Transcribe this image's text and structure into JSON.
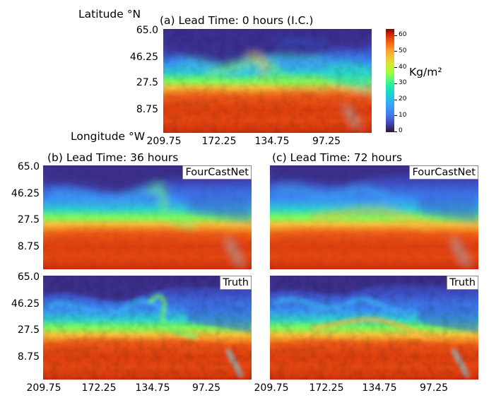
{
  "panel_a": {
    "title": "(a) Lead Time: 0 hours (I.C.)",
    "lat_label": "Latitude °N",
    "lon_label": "Longitude °W",
    "y_ticks": [
      "65.0",
      "46.25",
      "27.5",
      "8.75"
    ],
    "x_ticks": [
      "209.75",
      "172.25",
      "134.75",
      "97.25"
    ]
  },
  "colorbar": {
    "unit": "Kg/m²",
    "ticks": [
      "60",
      "50",
      "40",
      "30",
      "20",
      "10",
      "0"
    ],
    "colormap": [
      "#30123b",
      "#4145ab",
      "#4675ed",
      "#39a2fc",
      "#1bcfd4",
      "#24eca6",
      "#61fc6c",
      "#a4fc3b",
      "#d1e834",
      "#f3c63a",
      "#fe9b2d",
      "#f36315",
      "#d93806",
      "#7a0403"
    ]
  },
  "panel_b": {
    "title": "(b) Lead Time: 36 hours",
    "y_ticks": [
      "65.0",
      "46.25",
      "27.5",
      "8.75"
    ],
    "lower_y_ticks": [
      "65.0",
      "46.25",
      "27.5",
      "8.75"
    ],
    "x_ticks": [
      "209.75",
      "172.25",
      "134.75",
      "97.25"
    ],
    "forecast_label": "FourCastNet",
    "truth_label": "Truth"
  },
  "panel_c": {
    "title": "(c) Lead Time: 72 hours",
    "x_ticks": [
      "209.75",
      "172.25",
      "134.75",
      "97.25"
    ],
    "forecast_label": "FourCastNet",
    "truth_label": "Truth"
  },
  "caption_fragment": "..."
}
